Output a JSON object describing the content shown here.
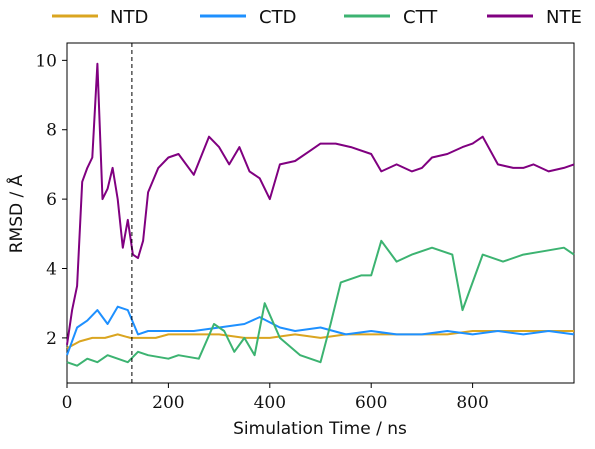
{
  "chart_data": {
    "type": "line",
    "xlabel": "Simulation Time / ns",
    "ylabel": "RMSD / Å",
    "xlim": [
      0,
      1000
    ],
    "ylim": [
      0.7,
      10.5
    ],
    "x_ticks": [
      0,
      200,
      400,
      600,
      800
    ],
    "y_ticks": [
      2,
      4,
      6,
      8,
      10
    ],
    "grid": false,
    "legend_position": "top",
    "annotations": [
      {
        "type": "vertical-dashed-line",
        "x": 128
      }
    ],
    "series": [
      {
        "name": "NTD",
        "color": "#DAA520",
        "x": [
          0,
          25,
          50,
          75,
          100,
          125,
          150,
          175,
          200,
          250,
          300,
          350,
          400,
          450,
          500,
          550,
          600,
          650,
          700,
          750,
          800,
          850,
          900,
          950,
          1000
        ],
        "y": [
          1.7,
          1.9,
          2.0,
          2.0,
          2.1,
          2.0,
          2.0,
          2.0,
          2.1,
          2.1,
          2.1,
          2.0,
          2.0,
          2.1,
          2.0,
          2.1,
          2.1,
          2.1,
          2.1,
          2.1,
          2.2,
          2.2,
          2.2,
          2.2,
          2.2
        ]
      },
      {
        "name": "CTD",
        "color": "#1E90FF",
        "x": [
          0,
          20,
          40,
          60,
          80,
          100,
          120,
          140,
          160,
          200,
          250,
          300,
          350,
          380,
          420,
          450,
          500,
          550,
          600,
          650,
          700,
          750,
          800,
          850,
          900,
          950,
          1000
        ],
        "y": [
          1.5,
          2.3,
          2.5,
          2.8,
          2.4,
          2.9,
          2.8,
          2.1,
          2.2,
          2.2,
          2.2,
          2.3,
          2.4,
          2.6,
          2.3,
          2.2,
          2.3,
          2.1,
          2.2,
          2.1,
          2.1,
          2.2,
          2.1,
          2.2,
          2.1,
          2.2,
          2.1
        ]
      },
      {
        "name": "CTT",
        "color": "#3CB371",
        "x": [
          0,
          20,
          40,
          60,
          80,
          100,
          120,
          140,
          160,
          200,
          220,
          260,
          290,
          310,
          330,
          350,
          370,
          390,
          420,
          460,
          500,
          520,
          540,
          580,
          600,
          620,
          650,
          680,
          720,
          760,
          780,
          820,
          860,
          900,
          940,
          980,
          1000
        ],
        "y": [
          1.3,
          1.2,
          1.4,
          1.3,
          1.5,
          1.4,
          1.3,
          1.6,
          1.5,
          1.4,
          1.5,
          1.4,
          2.4,
          2.2,
          1.6,
          2.0,
          1.5,
          3.0,
          2.0,
          1.5,
          1.3,
          2.4,
          3.6,
          3.8,
          3.8,
          4.8,
          4.2,
          4.4,
          4.6,
          4.4,
          2.8,
          4.4,
          4.2,
          4.4,
          4.5,
          4.6,
          4.4
        ]
      },
      {
        "name": "NTE",
        "color": "#800080",
        "x": [
          0,
          10,
          20,
          30,
          40,
          50,
          60,
          70,
          80,
          90,
          100,
          110,
          120,
          130,
          140,
          150,
          160,
          180,
          200,
          220,
          250,
          280,
          300,
          320,
          340,
          360,
          380,
          400,
          420,
          450,
          480,
          500,
          530,
          560,
          600,
          620,
          650,
          680,
          700,
          720,
          750,
          780,
          800,
          820,
          850,
          880,
          900,
          920,
          950,
          980,
          1000
        ],
        "y": [
          1.8,
          2.8,
          3.5,
          6.5,
          6.9,
          7.2,
          9.9,
          6.0,
          6.3,
          6.9,
          6.0,
          4.6,
          5.4,
          4.4,
          4.3,
          4.8,
          6.2,
          6.9,
          7.2,
          7.3,
          6.7,
          7.8,
          7.5,
          7.0,
          7.5,
          6.8,
          6.6,
          6.0,
          7.0,
          7.1,
          7.4,
          7.6,
          7.6,
          7.5,
          7.3,
          6.8,
          7.0,
          6.8,
          6.9,
          7.2,
          7.3,
          7.5,
          7.6,
          7.8,
          7.0,
          6.9,
          6.9,
          7.0,
          6.8,
          6.9,
          7.0
        ]
      }
    ]
  }
}
